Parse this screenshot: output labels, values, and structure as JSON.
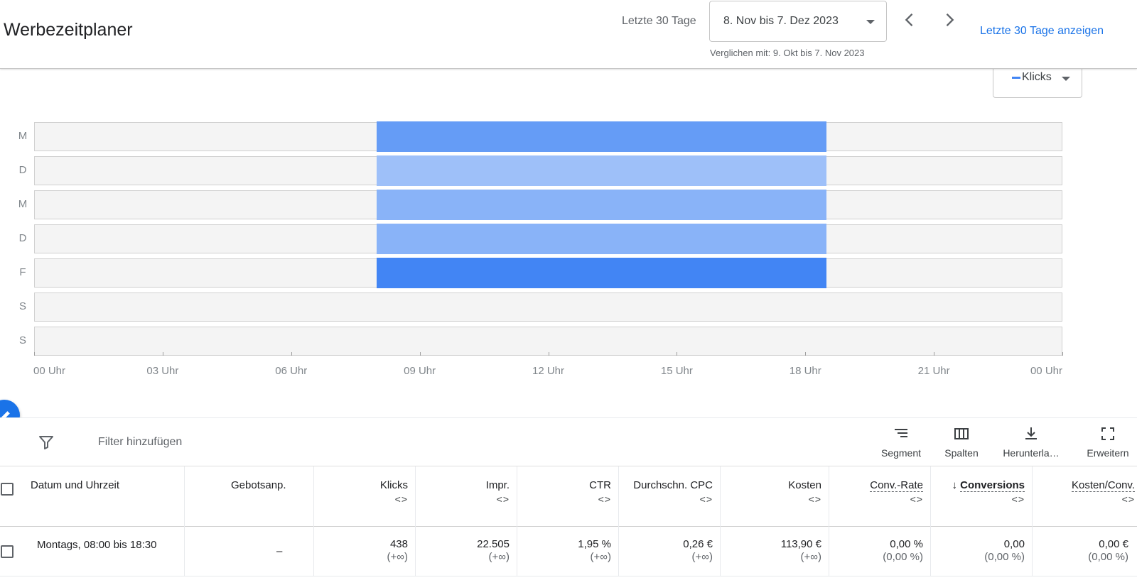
{
  "header": {
    "title": "Werbezeitplaner",
    "range_label": "Letzte 30 Tage",
    "date_range": "8. Nov bis 7. Dez 2023",
    "compare_text": "Verglichen mit: 9. Okt bis 7. Nov 2023",
    "show_link": "Letzte 30 Tage anzeigen",
    "prev_icon": "chevron-left-icon",
    "next_icon": "chevron-right-icon"
  },
  "metric_selector": {
    "label": "Klicks",
    "color": "#4285f4"
  },
  "chart_data": {
    "type": "heatmap",
    "metric": "Klicks",
    "rows": [
      "M",
      "D",
      "M",
      "D",
      "F",
      "S",
      "S"
    ],
    "x_ticks": [
      "00 Uhr",
      "03 Uhr",
      "06 Uhr",
      "09 Uhr",
      "12 Uhr",
      "15 Uhr",
      "18 Uhr",
      "21 Uhr",
      "00 Uhr"
    ],
    "x_range_hours": [
      0,
      24
    ],
    "blocks": [
      {
        "row": 0,
        "start_hour": 8,
        "end_hour": 18.5,
        "intensity": 0.75
      },
      {
        "row": 1,
        "start_hour": 8,
        "end_hour": 18.5,
        "intensity": 0.35
      },
      {
        "row": 2,
        "start_hour": 8,
        "end_hour": 18.5,
        "intensity": 0.5
      },
      {
        "row": 3,
        "start_hour": 8,
        "end_hour": 18.5,
        "intensity": 0.5
      },
      {
        "row": 4,
        "start_hour": 8,
        "end_hour": 18.5,
        "intensity": 1.0
      }
    ],
    "color_low": "#cfe0fc",
    "color_high": "#4285f4",
    "empty_color": "#f4f4f4"
  },
  "toolbar": {
    "filter_placeholder": "Filter hinzufügen",
    "tools": [
      {
        "icon": "segment-icon",
        "label": "Segment"
      },
      {
        "icon": "columns-icon",
        "label": "Spalten"
      },
      {
        "icon": "download-icon",
        "label": "Herunterla…"
      },
      {
        "icon": "expand-icon",
        "label": "Erweitern"
      }
    ]
  },
  "table": {
    "columns": [
      {
        "label": "Datum und Uhrzeit"
      },
      {
        "label": "Gebotsanp."
      },
      {
        "label": "Klicks",
        "sort": "<>"
      },
      {
        "label": "Impr.",
        "sort": "<>"
      },
      {
        "label": "CTR",
        "sort": "<>"
      },
      {
        "label": "Durchschn. CPC",
        "sort": "<>"
      },
      {
        "label": "Kosten",
        "sort": "<>"
      },
      {
        "label": "Conv.-Rate",
        "sort": "<>"
      },
      {
        "label": "Conversions",
        "sort": "<>",
        "sorted_arrow": "↓"
      },
      {
        "label": "Kosten/Conv.",
        "sort": "<>"
      }
    ],
    "rows": [
      {
        "date": "Montags, 08:00 bis 18:30",
        "bid_adj": "–",
        "cells": [
          {
            "value": "438",
            "change": "(+∞)"
          },
          {
            "value": "22.505",
            "change": "(+∞)"
          },
          {
            "value": "1,95 %",
            "change": "(+∞)"
          },
          {
            "value": "0,26 €",
            "change": "(+∞)"
          },
          {
            "value": "113,90 €",
            "change": "(+∞)"
          },
          {
            "value": "0,00 %",
            "change": "(0,00 %)"
          },
          {
            "value": "0,00",
            "change": "(0,00 %)"
          },
          {
            "value": "0,00 €",
            "change": "(0,00 %)"
          }
        ]
      }
    ]
  }
}
